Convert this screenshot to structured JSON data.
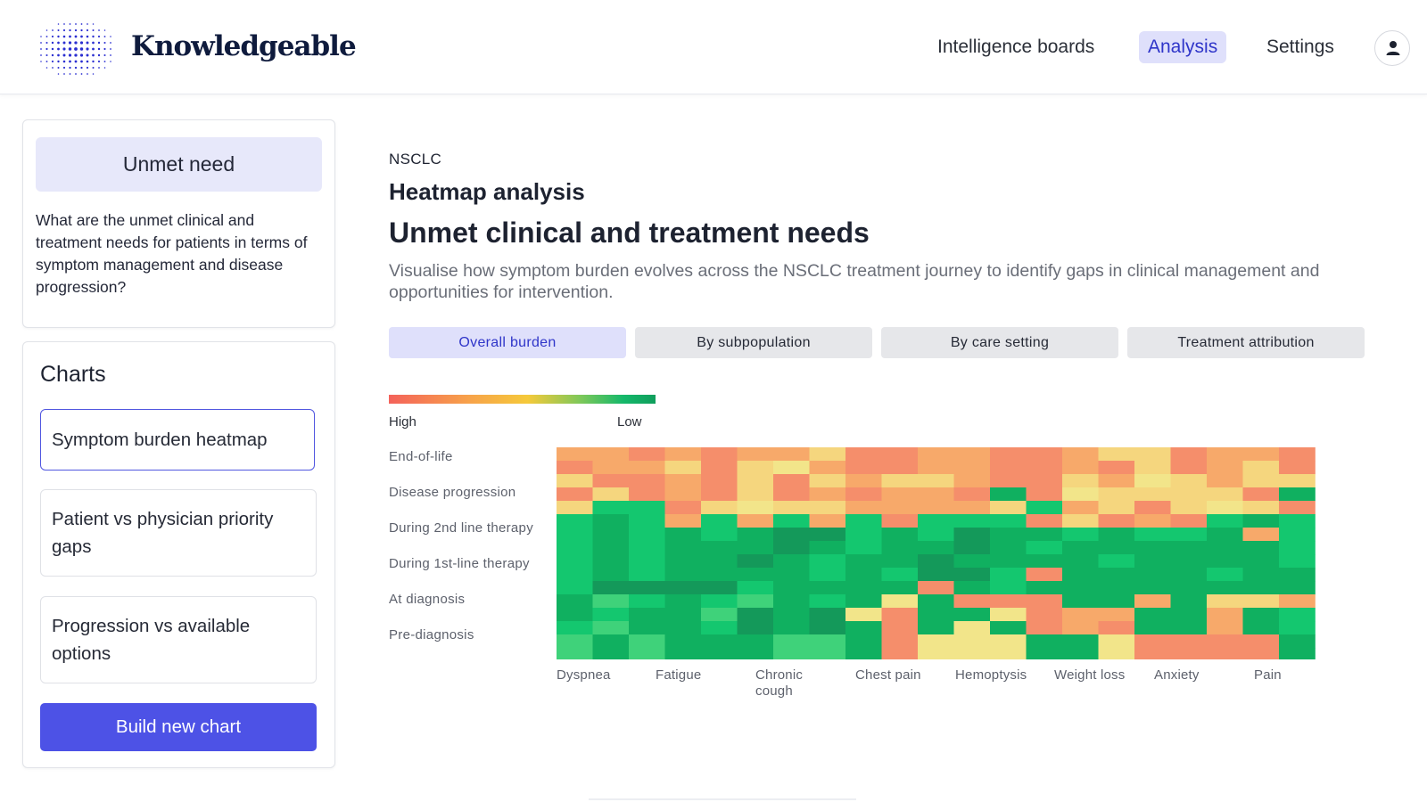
{
  "brand": {
    "name": "Knowledgeable"
  },
  "nav": {
    "items": [
      {
        "label": "Intelligence boards"
      },
      {
        "label": "Analysis"
      },
      {
        "label": "Settings"
      }
    ],
    "active": "Analysis",
    "user_icon": "user-icon"
  },
  "sidebar": {
    "topic": {
      "title": "Unmet need",
      "question": "What are the unmet clinical and treatment needs for patients in terms of symptom management and disease progression?"
    },
    "charts": {
      "title": "Charts",
      "items": [
        {
          "label": "Symptom burden heatmap"
        },
        {
          "label": "Patient vs physician priority gaps"
        },
        {
          "label": "Progression vs available options"
        }
      ],
      "build_label": "Build new chart"
    }
  },
  "main": {
    "eyebrow": "NSCLC",
    "section": "Heatmap analysis",
    "title": "Unmet clinical and treatment needs",
    "description": "Visualise how symptom burden evolves across the NSCLC treatment journey to identify gaps in clinical management and opportunities for intervention.",
    "tabs": [
      {
        "label": "Overall burden"
      },
      {
        "label": "By subpopulation"
      },
      {
        "label": "By care setting"
      },
      {
        "label": "Treatment attribution"
      }
    ],
    "legend": {
      "high": "High",
      "low": "Low"
    }
  },
  "colors": {
    "accent": "#4d52e6",
    "accent_soft": "#dfe0fb",
    "scale": [
      "#f4625a",
      "#f58e6b",
      "#f7a96a",
      "#f5d67e",
      "#f2e58a",
      "#6dd66b",
      "#3fd27a",
      "#14c76f",
      "#10b060",
      "#14995a",
      "#1f8a52"
    ]
  },
  "chart_data": {
    "type": "heatmap",
    "rows": [
      "End-of-life",
      "Disease progression",
      "During 2nd line therapy",
      "During 1st-line therapy",
      "At diagnosis",
      "Pre-diagnosis"
    ],
    "columns": [
      "Dyspnea",
      "Fatigue",
      "Chronic cough",
      "Chest pain",
      "Hemoptysis",
      "Weight loss",
      "Anxiety",
      "Pain"
    ],
    "scale": {
      "min_label": "High",
      "max_label": "Low"
    },
    "grid_rows": 16,
    "grid_cols": 21,
    "values": [
      [
        2,
        2,
        1,
        2,
        1,
        2,
        2,
        3,
        1,
        1,
        2,
        2,
        1,
        1,
        2,
        3,
        3,
        1,
        2,
        2,
        1
      ],
      [
        1,
        2,
        2,
        3,
        1,
        3,
        4,
        2,
        1,
        1,
        2,
        2,
        1,
        1,
        2,
        1,
        3,
        1,
        2,
        3,
        1
      ],
      [
        3,
        1,
        1,
        2,
        1,
        3,
        1,
        3,
        2,
        3,
        3,
        2,
        1,
        1,
        3,
        2,
        4,
        3,
        2,
        3,
        3
      ],
      [
        1,
        3,
        1,
        2,
        1,
        3,
        1,
        2,
        1,
        2,
        2,
        1,
        8,
        1,
        4,
        3,
        3,
        3,
        3,
        1,
        8
      ],
      [
        3,
        7,
        7,
        1,
        3,
        4,
        3,
        3,
        2,
        2,
        2,
        2,
        3,
        7,
        2,
        3,
        1,
        3,
        4,
        3,
        1
      ],
      [
        7,
        8,
        7,
        2,
        7,
        2,
        7,
        2,
        7,
        1,
        7,
        7,
        7,
        1,
        3,
        1,
        2,
        1,
        7,
        8,
        7
      ],
      [
        7,
        8,
        7,
        8,
        7,
        8,
        9,
        9,
        7,
        8,
        7,
        9,
        8,
        8,
        7,
        8,
        7,
        7,
        8,
        2,
        7
      ],
      [
        7,
        8,
        7,
        8,
        8,
        8,
        9,
        8,
        7,
        8,
        8,
        9,
        8,
        7,
        8,
        8,
        8,
        8,
        8,
        8,
        7
      ],
      [
        7,
        8,
        7,
        8,
        8,
        9,
        8,
        7,
        8,
        8,
        9,
        8,
        8,
        8,
        8,
        7,
        8,
        8,
        8,
        8,
        7
      ],
      [
        7,
        8,
        7,
        8,
        8,
        8,
        8,
        7,
        8,
        7,
        9,
        9,
        7,
        1,
        8,
        8,
        8,
        8,
        7,
        8,
        8
      ],
      [
        7,
        9,
        9,
        9,
        9,
        7,
        8,
        8,
        8,
        8,
        1,
        8,
        7,
        8,
        8,
        8,
        8,
        8,
        8,
        8,
        8
      ],
      [
        8,
        6,
        7,
        8,
        7,
        6,
        8,
        7,
        8,
        4,
        8,
        1,
        1,
        1,
        8,
        8,
        2,
        8,
        3,
        3,
        2
      ],
      [
        8,
        7,
        8,
        8,
        6,
        9,
        8,
        9,
        4,
        1,
        8,
        8,
        4,
        1,
        2,
        2,
        8,
        8,
        2,
        8,
        7
      ],
      [
        7,
        6,
        8,
        8,
        7,
        9,
        8,
        9,
        8,
        1,
        8,
        4,
        8,
        1,
        2,
        1,
        8,
        8,
        2,
        8,
        7
      ],
      [
        6,
        8,
        6,
        8,
        8,
        8,
        6,
        6,
        8,
        1,
        4,
        4,
        4,
        8,
        8,
        4,
        1,
        1,
        1,
        1,
        8
      ],
      [
        6,
        8,
        6,
        8,
        8,
        8,
        6,
        6,
        8,
        1,
        4,
        4,
        4,
        8,
        8,
        4,
        1,
        1,
        1,
        1,
        8
      ]
    ]
  }
}
